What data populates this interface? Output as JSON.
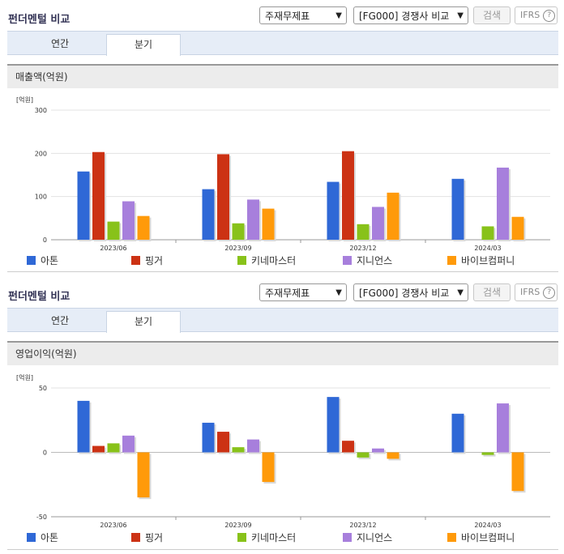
{
  "header": {
    "title": "펀더멘털 비교",
    "statement_select": "주재무제표",
    "compare_select": "[FG000] 경쟁사 비교",
    "search_label": "검색",
    "ifrs_label": "IFRS",
    "help_label": "?"
  },
  "tabs": [
    {
      "label": "연간"
    },
    {
      "label": "분기"
    }
  ],
  "colors": {
    "아톤": "#2f68d6",
    "핑거": "#cc3214",
    "키네마스터": "#88c21a",
    "지니언스": "#a77fdc",
    "바이브컴퍼니": "#ff9a0a"
  },
  "chart_data": [
    {
      "type": "bar",
      "title": "매출액(억원)",
      "unit_label": "[억원]",
      "categories": [
        "2023/06",
        "2023/09",
        "2023/12",
        "2024/03"
      ],
      "ylim": [
        0,
        300
      ],
      "yticks": [
        "300",
        "200",
        "100",
        "0"
      ],
      "ytick_values": [
        300,
        200,
        100,
        0
      ],
      "legend_position": "bottom",
      "series": [
        {
          "name": "아톤",
          "color": "#2f68d6",
          "values": [
            158,
            117,
            134,
            141
          ]
        },
        {
          "name": "핑거",
          "color": "#cc3214",
          "values": [
            203,
            198,
            205,
            null
          ]
        },
        {
          "name": "키네마스터",
          "color": "#88c21a",
          "values": [
            42,
            38,
            36,
            31
          ]
        },
        {
          "name": "지니언스",
          "color": "#a77fdc",
          "values": [
            89,
            93,
            76,
            167
          ]
        },
        {
          "name": "바이브컴퍼니",
          "color": "#ff9a0a",
          "values": [
            55,
            72,
            109,
            53
          ]
        }
      ]
    },
    {
      "type": "bar",
      "title": "영업이익(억원)",
      "unit_label": "[억원]",
      "categories": [
        "2023/06",
        "2023/09",
        "2023/12",
        "2024/03"
      ],
      "ylim": [
        -50,
        50
      ],
      "yticks": [
        "50",
        "0",
        "-50"
      ],
      "ytick_values": [
        50,
        0,
        -50
      ],
      "legend_position": "bottom",
      "series": [
        {
          "name": "아톤",
          "color": "#2f68d6",
          "values": [
            40,
            23,
            43,
            30
          ]
        },
        {
          "name": "핑거",
          "color": "#cc3214",
          "values": [
            5,
            16,
            9,
            null
          ]
        },
        {
          "name": "키네마스터",
          "color": "#88c21a",
          "values": [
            7,
            4,
            -4,
            -2
          ]
        },
        {
          "name": "지니언스",
          "color": "#a77fdc",
          "values": [
            13,
            10,
            3,
            38
          ]
        },
        {
          "name": "바이브컴퍼니",
          "color": "#ff9a0a",
          "values": [
            -35,
            -23,
            -5,
            -30
          ]
        }
      ]
    }
  ]
}
